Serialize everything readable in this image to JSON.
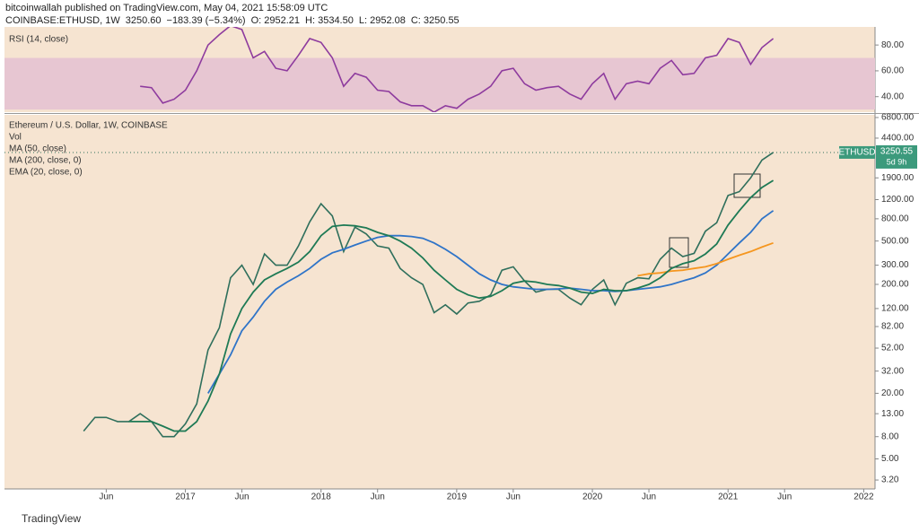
{
  "header": {
    "publisher": "bitcoinwallah published on TradingView.com, May 04, 2021 15:58:09 UTC",
    "symbol": "COINBASE:ETHUSD, 1W",
    "last": "3250.60",
    "change": "−183.39 (−5.34%)",
    "open": "O: 2952.21",
    "high": "H: 3534.50",
    "low": "L: 2952.08",
    "close": "C: 3250.55"
  },
  "footer": "TradingView",
  "chart_data": [
    {
      "type": "line",
      "title": "RSI (14, close)",
      "x": [
        "2016-04",
        "2016-05",
        "2016-06",
        "2016-07",
        "2016-08",
        "2016-09",
        "2016-10",
        "2016-11",
        "2016-12",
        "2017-01",
        "2017-02",
        "2017-03",
        "2017-04",
        "2017-05",
        "2017-06",
        "2017-07",
        "2017-08",
        "2017-09",
        "2017-10",
        "2017-11",
        "2017-12",
        "2018-01",
        "2018-02",
        "2018-03",
        "2018-04",
        "2018-05",
        "2018-06",
        "2018-07",
        "2018-08",
        "2018-09",
        "2018-10",
        "2018-11",
        "2018-12",
        "2019-01",
        "2019-02",
        "2019-03",
        "2019-04",
        "2019-05",
        "2019-06",
        "2019-07",
        "2019-08",
        "2019-09",
        "2019-10",
        "2019-11",
        "2019-12",
        "2020-01",
        "2020-02",
        "2020-03",
        "2020-04",
        "2020-05",
        "2020-06",
        "2020-07",
        "2020-08",
        "2020-09",
        "2020-10",
        "2020-11",
        "2020-12",
        "2021-01",
        "2021-02",
        "2021-03",
        "2021-04",
        "2021-05"
      ],
      "series": [
        {
          "name": "RSI",
          "color": "#8e3b9e",
          "values": [
            null,
            null,
            null,
            null,
            null,
            48,
            47,
            35,
            38,
            45,
            60,
            80,
            88,
            95,
            92,
            70,
            75,
            62,
            60,
            72,
            85,
            82,
            70,
            48,
            58,
            55,
            45,
            44,
            36,
            33,
            33,
            28,
            33,
            31,
            38,
            42,
            48,
            60,
            62,
            50,
            45,
            47,
            48,
            42,
            38,
            50,
            58,
            38,
            50,
            52,
            50,
            62,
            68,
            57,
            58,
            70,
            72,
            85,
            82,
            65,
            78,
            85
          ]
        }
      ],
      "band": [
        30,
        70
      ],
      "band_color": "#e7c6d2",
      "xlim": [
        "2015-09",
        "2022-02"
      ],
      "ylim": [
        28,
        94
      ],
      "yticks": [
        {
          "value": 40,
          "label": "40.00"
        },
        {
          "value": 60,
          "label": "60.00"
        },
        {
          "value": 80,
          "label": "80.00"
        }
      ],
      "grid": false
    },
    {
      "type": "line",
      "title": "Ethereum / U.S. Dollar, 1W, COINBASE",
      "volume_label": "Vol",
      "log_scale": true,
      "grid": false,
      "x": [
        "2016-04",
        "2016-05",
        "2016-06",
        "2016-07",
        "2016-08",
        "2016-09",
        "2016-10",
        "2016-11",
        "2016-12",
        "2017-01",
        "2017-02",
        "2017-03",
        "2017-04",
        "2017-05",
        "2017-06",
        "2017-07",
        "2017-08",
        "2017-09",
        "2017-10",
        "2017-11",
        "2017-12",
        "2018-01",
        "2018-02",
        "2018-03",
        "2018-04",
        "2018-05",
        "2018-06",
        "2018-07",
        "2018-08",
        "2018-09",
        "2018-10",
        "2018-11",
        "2018-12",
        "2019-01",
        "2019-02",
        "2019-03",
        "2019-04",
        "2019-05",
        "2019-06",
        "2019-07",
        "2019-08",
        "2019-09",
        "2019-10",
        "2019-11",
        "2019-12",
        "2020-01",
        "2020-02",
        "2020-03",
        "2020-04",
        "2020-05",
        "2020-06",
        "2020-07",
        "2020-08",
        "2020-09",
        "2020-10",
        "2020-11",
        "2020-12",
        "2021-01",
        "2021-02",
        "2021-03",
        "2021-04",
        "2021-05"
      ],
      "series": [
        {
          "name": "ETHUSD",
          "color": "#2f6f5c",
          "values": [
            9,
            12,
            12,
            11,
            11,
            13,
            11,
            8,
            8,
            10.5,
            16,
            50,
            80,
            230,
            300,
            200,
            380,
            300,
            300,
            450,
            750,
            1100,
            850,
            400,
            670,
            580,
            450,
            430,
            280,
            230,
            200,
            110,
            130,
            107,
            135,
            140,
            160,
            270,
            290,
            215,
            170,
            180,
            180,
            150,
            130,
            180,
            220,
            130,
            205,
            230,
            225,
            340,
            430,
            360,
            385,
            615,
            735,
            1310,
            1420,
            1900,
            2770,
            3250.55
          ]
        },
        {
          "name": "MA (50, close)",
          "color": "#2f74c8",
          "values": [
            null,
            null,
            null,
            null,
            null,
            null,
            null,
            null,
            null,
            null,
            null,
            20,
            30,
            45,
            75,
            100,
            140,
            180,
            210,
            240,
            280,
            340,
            390,
            420,
            460,
            500,
            540,
            560,
            560,
            550,
            530,
            480,
            420,
            360,
            300,
            250,
            220,
            200,
            190,
            185,
            180,
            180,
            182,
            185,
            180,
            175,
            175,
            172,
            175,
            180,
            185,
            190,
            200,
            215,
            230,
            255,
            300,
            380,
            480,
            600,
            800,
            950
          ]
        },
        {
          "name": "MA (200, close, 0)",
          "color": "#f5961f",
          "values": [
            null,
            null,
            null,
            null,
            null,
            null,
            null,
            null,
            null,
            null,
            null,
            null,
            null,
            null,
            null,
            null,
            null,
            null,
            null,
            null,
            null,
            null,
            null,
            null,
            null,
            null,
            null,
            null,
            null,
            null,
            null,
            null,
            null,
            null,
            null,
            null,
            null,
            null,
            null,
            null,
            null,
            null,
            null,
            null,
            null,
            null,
            null,
            null,
            null,
            240,
            250,
            255,
            265,
            270,
            280,
            290,
            310,
            340,
            370,
            400,
            440,
            480
          ]
        },
        {
          "name": "EMA (20, close, 0)",
          "color": "#1e7a55",
          "values": [
            null,
            null,
            null,
            null,
            11,
            11,
            11,
            10,
            9,
            9,
            11,
            17,
            30,
            70,
            120,
            170,
            220,
            250,
            280,
            320,
            400,
            560,
            680,
            700,
            690,
            660,
            600,
            560,
            500,
            430,
            350,
            270,
            220,
            180,
            160,
            150,
            155,
            175,
            205,
            215,
            210,
            200,
            195,
            185,
            170,
            165,
            180,
            175,
            175,
            185,
            200,
            230,
            280,
            310,
            330,
            380,
            470,
            700,
            950,
            1250,
            1550,
            1800
          ]
        }
      ],
      "countdown": "5d 9h",
      "xlim": [
        "2015-09",
        "2022-02"
      ],
      "ylim": [
        2.65,
        7200
      ],
      "yticks": [
        {
          "value": 3.2,
          "label": "3.20"
        },
        {
          "value": 5,
          "label": "5.00"
        },
        {
          "value": 8,
          "label": "8.00"
        },
        {
          "value": 13,
          "label": "13.00"
        },
        {
          "value": 20,
          "label": "20.00"
        },
        {
          "value": 32,
          "label": "32.00"
        },
        {
          "value": 52,
          "label": "52.00"
        },
        {
          "value": 82,
          "label": "82.00"
        },
        {
          "value": 120,
          "label": "120.00"
        },
        {
          "value": 200,
          "label": "200.00"
        },
        {
          "value": 300,
          "label": "300.00"
        },
        {
          "value": 500,
          "label": "500.00"
        },
        {
          "value": 800,
          "label": "800.00"
        },
        {
          "value": 1200,
          "label": "1200.00"
        },
        {
          "value": 1900,
          "label": "1900.00"
        },
        {
          "value": 4400,
          "label": "4400.00"
        },
        {
          "value": 6800,
          "label": "6800.00"
        }
      ],
      "xticks": [
        {
          "value": "2016-06",
          "label": "Jun"
        },
        {
          "value": "2017-01",
          "label": "2017"
        },
        {
          "value": "2017-06",
          "label": "Jun"
        },
        {
          "value": "2018-01",
          "label": "2018"
        },
        {
          "value": "2018-06",
          "label": "Jun"
        },
        {
          "value": "2019-01",
          "label": "2019"
        },
        {
          "value": "2019-06",
          "label": "Jun"
        },
        {
          "value": "2020-01",
          "label": "2020"
        },
        {
          "value": "2020-06",
          "label": "Jun"
        },
        {
          "value": "2021-01",
          "label": "2021"
        },
        {
          "value": "2021-06",
          "label": "Jun"
        },
        {
          "value": "2022-01",
          "label": "2022"
        }
      ]
    }
  ]
}
